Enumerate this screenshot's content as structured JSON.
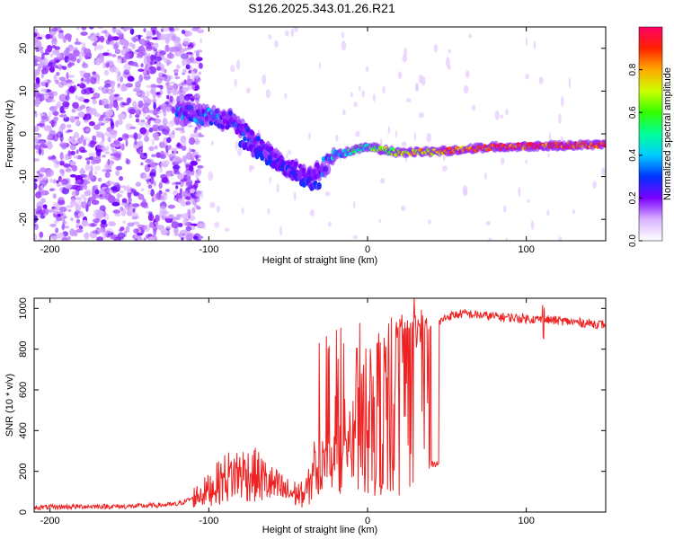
{
  "title": "S126.2025.343.01.26.R21",
  "chart_data": [
    {
      "type": "heatmap",
      "xlabel": "Height of straight line (km)",
      "ylabel": "Frequency (Hz)",
      "xlim": [
        -210,
        150
      ],
      "ylim": [
        -25,
        25
      ],
      "xticks": [
        -200,
        -100,
        0,
        100
      ],
      "yticks": [
        -20,
        -10,
        0,
        10,
        20
      ],
      "colorbar": {
        "label": "Normalized spectral amplitude",
        "range": [
          0,
          1
        ],
        "ticks": [
          "0.0",
          "0.2",
          "0.4",
          "0.6",
          "0.8"
        ],
        "tick_values": [
          0.0,
          0.2,
          0.4,
          0.6,
          0.8
        ]
      },
      "ridge": {
        "description_points": [
          {
            "x": -120,
            "y": 5,
            "amp": 0.3
          },
          {
            "x": -100,
            "y": 4,
            "amp": 0.3
          },
          {
            "x": -85,
            "y": 3,
            "amp": 0.25
          },
          {
            "x": -70,
            "y": -2,
            "amp": 0.2
          },
          {
            "x": -55,
            "y": -7,
            "amp": 0.15
          },
          {
            "x": -35,
            "y": -10,
            "amp": 0.15
          },
          {
            "x": -20,
            "y": -5,
            "amp": 0.4
          },
          {
            "x": 0,
            "y": -3,
            "amp": 0.5
          },
          {
            "x": 20,
            "y": -4.5,
            "amp": 0.7
          },
          {
            "x": 50,
            "y": -4,
            "amp": 0.8
          },
          {
            "x": 80,
            "y": -3,
            "amp": 0.9
          },
          {
            "x": 110,
            "y": -2.8,
            "amp": 0.9
          },
          {
            "x": 150,
            "y": -2.5,
            "amp": 0.9
          }
        ]
      }
    },
    {
      "type": "line",
      "xlabel": "Height of straight line (km)",
      "ylabel": "SNR (10 * v/v)",
      "xlim": [
        -210,
        150
      ],
      "ylim": [
        0,
        1050
      ],
      "xticks": [
        -200,
        -100,
        0,
        100
      ],
      "yticks": [
        0,
        200,
        400,
        600,
        800,
        1000
      ],
      "series": [
        {
          "name": "SNR",
          "color": "#ee2222",
          "x": [
            -210,
            -180,
            -150,
            -120,
            -110,
            -100,
            -90,
            -80,
            -70,
            -60,
            -50,
            -40,
            -30,
            -25,
            -20,
            -15,
            -10,
            -5,
            0,
            10,
            20,
            30,
            40,
            45,
            50,
            60,
            80,
            100,
            120,
            150
          ],
          "y": [
            15,
            20,
            20,
            30,
            60,
            90,
            140,
            160,
            150,
            110,
            80,
            70,
            180,
            350,
            400,
            430,
            450,
            500,
            560,
            640,
            720,
            800,
            880,
            930,
            960,
            975,
            960,
            950,
            940,
            920
          ]
        }
      ]
    }
  ]
}
